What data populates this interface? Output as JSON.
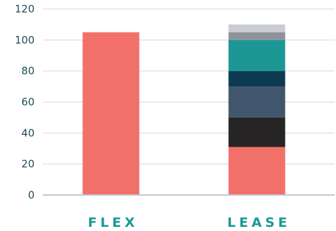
{
  "chart_data": {
    "type": "bar",
    "stacked": true,
    "categories": [
      "FLEX",
      "LEASE"
    ],
    "series": [
      {
        "color": "#f2706a",
        "values": [
          105,
          31
        ]
      },
      {
        "color": "#262425",
        "values": [
          0,
          19
        ]
      },
      {
        "color": "#40566d",
        "values": [
          0,
          20
        ]
      },
      {
        "color": "#0c3a51",
        "values": [
          0,
          10
        ]
      },
      {
        "color": "#1c9795",
        "values": [
          0,
          20
        ]
      },
      {
        "color": "#8d929b",
        "values": [
          0,
          5
        ]
      },
      {
        "color": "#c9ccd4",
        "values": [
          0,
          5
        ]
      }
    ],
    "yticks": [
      "0",
      "20",
      "40",
      "60",
      "80",
      "100",
      "120"
    ],
    "ylim": [
      0,
      120
    ],
    "grid": true,
    "title": "",
    "xlabel": "",
    "ylabel": ""
  }
}
